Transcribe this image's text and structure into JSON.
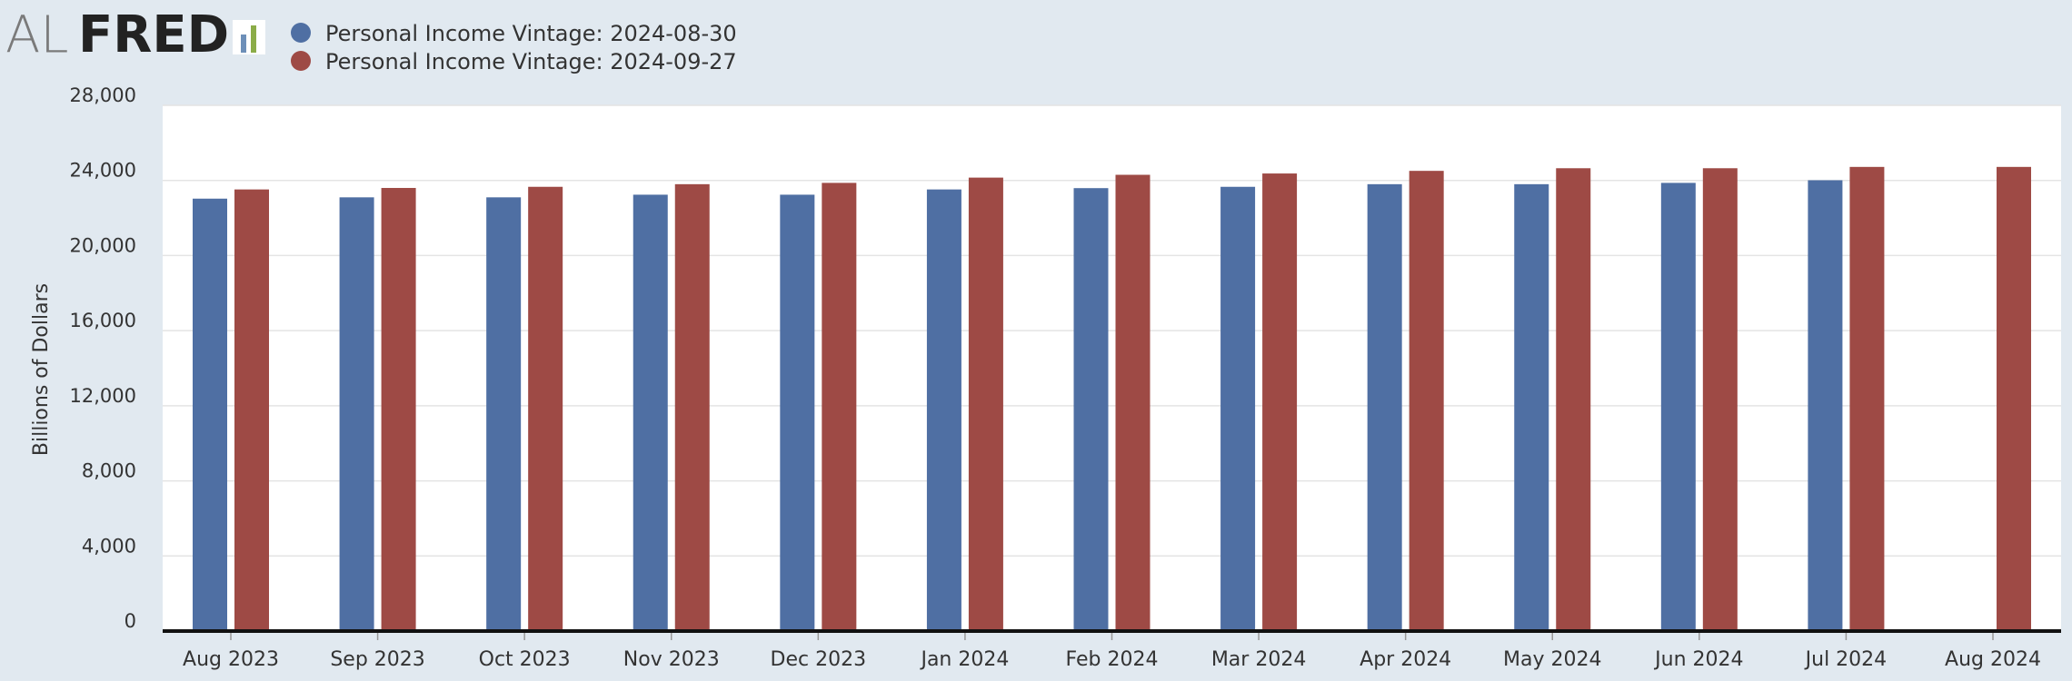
{
  "logo": {
    "part1": "AL",
    "part2": "FRED"
  },
  "chart_data": {
    "type": "bar",
    "y_label": "Billions of Dollars",
    "categories": [
      "Aug 2023",
      "Sep 2023",
      "Oct 2023",
      "Nov 2023",
      "Dec 2023",
      "Jan 2024",
      "Feb 2024",
      "Mar 2024",
      "Apr 2024",
      "May 2024",
      "Jun 2024",
      "Jul 2024",
      "Aug 2024"
    ],
    "series": [
      {
        "name": "Personal Income Vintage: 2024-08-30",
        "color": "#4f6fa3",
        "values": [
          23030,
          23100,
          23100,
          23240,
          23240,
          23520,
          23590,
          23660,
          23800,
          23800,
          23870,
          24010,
          null
        ]
      },
      {
        "name": "Personal Income Vintage: 2024-09-27",
        "color": "#9e4a45",
        "values": [
          23520,
          23600,
          23660,
          23800,
          23870,
          24150,
          24300,
          24370,
          24510,
          24650,
          24650,
          24720,
          24720
        ]
      }
    ],
    "ylim": [
      0,
      28000
    ],
    "yticks": [
      0,
      {
        "value": 4000,
        "label": "4,000"
      },
      {
        "value": 8000,
        "label": "8,000"
      },
      {
        "value": 12000,
        "label": "12,000"
      },
      {
        "value": 16000,
        "label": "16,000"
      },
      {
        "value": 20000,
        "label": "20,000"
      },
      {
        "value": 24000,
        "label": "24,000"
      },
      {
        "value": 28000,
        "label": "28,000"
      }
    ],
    "grid": true
  }
}
